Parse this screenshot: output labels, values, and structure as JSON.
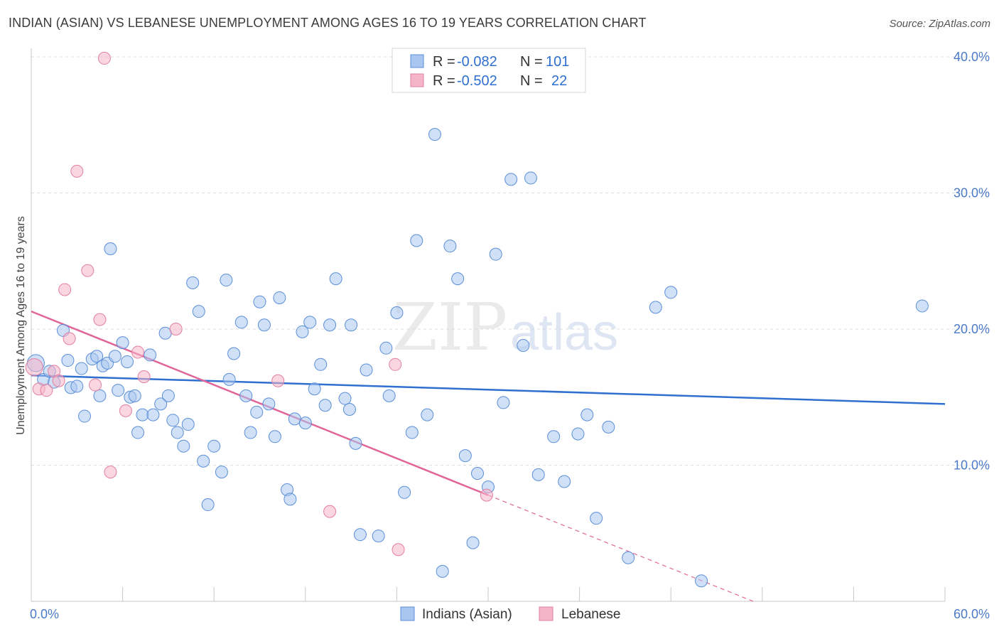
{
  "chart_data": {
    "type": "scatter",
    "title": "INDIAN (ASIAN) VS LEBANESE UNEMPLOYMENT AMONG AGES 16 TO 19 YEARS CORRELATION CHART",
    "source": "Source: ZipAtlas.com",
    "ylabel": "Unemployment Among Ages 16 to 19 years",
    "xlim": [
      0,
      60
    ],
    "ylim": [
      0,
      40
    ],
    "x_tick_labels": [
      "0.0%",
      "60.0%"
    ],
    "y_ticks": [
      10,
      20,
      30,
      40
    ],
    "y_tick_labels": [
      "10.0%",
      "20.0%",
      "30.0%",
      "40.0%"
    ],
    "watermark": [
      "ZIP",
      "atlas"
    ],
    "legend": {
      "r_label": "R =",
      "n_label": "N =",
      "rows": [
        {
          "r": "-0.082",
          "n": "101",
          "color": "#a9c6f0"
        },
        {
          "r": "-0.502",
          "n": "22",
          "color": "#f5b5c8"
        }
      ]
    },
    "series": [
      {
        "name": "Indians (Asian)",
        "color": "#a9c6f0",
        "stroke": "#5b8fd8",
        "trend": {
          "x0": 0,
          "y0": 16.6,
          "x1": 60,
          "y1": 14.5,
          "color": "#2f6fcf"
        },
        "points": [
          [
            0.3,
            17.5
          ],
          [
            0.8,
            16.3
          ],
          [
            1.2,
            16.9
          ],
          [
            1.5,
            16.1
          ],
          [
            2.1,
            19.9
          ],
          [
            2.4,
            17.7
          ],
          [
            2.6,
            15.7
          ],
          [
            3.0,
            15.8
          ],
          [
            3.3,
            17.1
          ],
          [
            3.5,
            13.6
          ],
          [
            4.0,
            17.8
          ],
          [
            4.3,
            18.0
          ],
          [
            4.5,
            15.1
          ],
          [
            4.7,
            17.3
          ],
          [
            5.0,
            17.5
          ],
          [
            5.2,
            25.9
          ],
          [
            5.5,
            18.0
          ],
          [
            5.7,
            15.5
          ],
          [
            6.0,
            19.0
          ],
          [
            6.3,
            17.6
          ],
          [
            6.5,
            15.0
          ],
          [
            6.8,
            15.1
          ],
          [
            7.0,
            12.4
          ],
          [
            7.3,
            13.7
          ],
          [
            7.8,
            18.1
          ],
          [
            8.0,
            13.7
          ],
          [
            8.5,
            14.5
          ],
          [
            8.8,
            19.7
          ],
          [
            9.0,
            15.1
          ],
          [
            9.3,
            13.3
          ],
          [
            9.6,
            12.4
          ],
          [
            10.0,
            11.4
          ],
          [
            10.3,
            13.0
          ],
          [
            10.6,
            23.4
          ],
          [
            11.0,
            21.3
          ],
          [
            11.3,
            10.3
          ],
          [
            11.6,
            7.1
          ],
          [
            12.0,
            11.4
          ],
          [
            12.5,
            9.5
          ],
          [
            12.8,
            23.6
          ],
          [
            13.0,
            16.3
          ],
          [
            13.3,
            18.2
          ],
          [
            13.8,
            20.5
          ],
          [
            14.1,
            15.1
          ],
          [
            14.4,
            12.4
          ],
          [
            14.8,
            13.9
          ],
          [
            15.0,
            22.0
          ],
          [
            15.3,
            20.3
          ],
          [
            15.6,
            14.5
          ],
          [
            16.0,
            12.1
          ],
          [
            16.3,
            22.3
          ],
          [
            16.8,
            8.2
          ],
          [
            17.0,
            7.5
          ],
          [
            17.3,
            13.4
          ],
          [
            17.8,
            19.8
          ],
          [
            18.0,
            13.1
          ],
          [
            18.3,
            20.5
          ],
          [
            18.6,
            15.6
          ],
          [
            19.0,
            17.4
          ],
          [
            19.3,
            14.4
          ],
          [
            19.6,
            20.3
          ],
          [
            20.0,
            23.7
          ],
          [
            20.6,
            14.9
          ],
          [
            20.9,
            14.1
          ],
          [
            21.0,
            20.3
          ],
          [
            21.3,
            11.6
          ],
          [
            21.6,
            4.9
          ],
          [
            22.0,
            17.0
          ],
          [
            22.8,
            4.8
          ],
          [
            23.3,
            18.6
          ],
          [
            24.0,
            21.2
          ],
          [
            24.5,
            8.0
          ],
          [
            25.0,
            12.4
          ],
          [
            25.3,
            26.5
          ],
          [
            26.0,
            13.7
          ],
          [
            26.5,
            34.3
          ],
          [
            27.0,
            2.2
          ],
          [
            27.5,
            26.1
          ],
          [
            28.0,
            23.7
          ],
          [
            28.5,
            10.7
          ],
          [
            29.3,
            9.4
          ],
          [
            30.0,
            8.4
          ],
          [
            30.5,
            25.5
          ],
          [
            31.0,
            14.6
          ],
          [
            31.5,
            31.0
          ],
          [
            32.3,
            18.8
          ],
          [
            32.8,
            31.1
          ],
          [
            33.3,
            9.3
          ],
          [
            34.3,
            12.1
          ],
          [
            35.0,
            8.8
          ],
          [
            35.9,
            12.3
          ],
          [
            36.5,
            13.7
          ],
          [
            37.1,
            6.1
          ],
          [
            37.9,
            12.8
          ],
          [
            39.2,
            3.2
          ],
          [
            41.0,
            21.6
          ],
          [
            42.0,
            22.7
          ],
          [
            44.0,
            1.5
          ],
          [
            58.5,
            21.7
          ],
          [
            29.0,
            4.3
          ],
          [
            23.5,
            15.1
          ]
        ]
      },
      {
        "name": "Lebanese",
        "color": "#f5b5c8",
        "stroke": "#e27fa0",
        "trend": {
          "x0": 0,
          "y0": 21.3,
          "x1": 30,
          "y1": 7.8,
          "dash_x1": 47.4,
          "dash_y1": 0,
          "color": "#e0669a"
        },
        "points": [
          [
            0.2,
            17.2
          ],
          [
            0.5,
            15.6
          ],
          [
            1.0,
            15.5
          ],
          [
            1.5,
            16.9
          ],
          [
            2.2,
            22.9
          ],
          [
            2.5,
            19.3
          ],
          [
            3.0,
            31.6
          ],
          [
            3.7,
            24.3
          ],
          [
            4.2,
            15.9
          ],
          [
            4.5,
            20.7
          ],
          [
            4.8,
            39.9
          ],
          [
            5.2,
            9.5
          ],
          [
            6.2,
            14.0
          ],
          [
            7.0,
            18.3
          ],
          [
            7.4,
            16.5
          ],
          [
            9.5,
            20.0
          ],
          [
            16.2,
            16.2
          ],
          [
            19.6,
            6.6
          ],
          [
            23.9,
            17.4
          ],
          [
            24.1,
            3.8
          ],
          [
            29.9,
            7.8
          ],
          [
            1.8,
            16.2
          ]
        ]
      }
    ]
  }
}
